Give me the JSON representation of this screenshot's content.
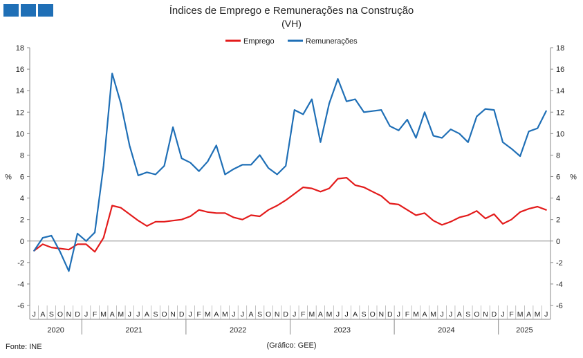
{
  "header": {
    "title": "Índices de Emprego e Remunerações na Construção",
    "subtitle": "(VH)"
  },
  "footer": {
    "source": "Fonte: INE",
    "credit": "(Gráfico: GEE)"
  },
  "colors": {
    "emprego": "#e31b1b",
    "remuneracoes": "#1f6fb6",
    "logo": "#1f6fb6"
  },
  "chart_data": {
    "type": "line",
    "title": "Índices de Emprego e Remunerações na Construção",
    "subtitle": "(VH)",
    "ylabel": "%",
    "ylabel_right": "%",
    "ylim": [
      -6,
      18
    ],
    "yticks": [
      -6,
      -4,
      -2,
      0,
      2,
      4,
      6,
      8,
      10,
      12,
      14,
      16,
      18
    ],
    "grid": false,
    "legend_position": "top-center",
    "month_labels": [
      "J",
      "A",
      "S",
      "O",
      "N",
      "D",
      "J",
      "F",
      "M",
      "A",
      "M",
      "J",
      "J",
      "A",
      "S",
      "O",
      "N",
      "D",
      "J",
      "F",
      "M",
      "A",
      "M",
      "J",
      "J",
      "A",
      "S",
      "O",
      "N",
      "D",
      "J",
      "F",
      "M",
      "A",
      "M",
      "J",
      "J",
      "A",
      "S",
      "O",
      "N",
      "D",
      "J",
      "F",
      "M",
      "A",
      "M",
      "J",
      "J",
      "A",
      "S",
      "O",
      "N",
      "D",
      "J",
      "F",
      "M",
      "A",
      "M",
      "J"
    ],
    "years": [
      {
        "label": "2020",
        "start": 0,
        "count": 6
      },
      {
        "label": "2021",
        "start": 6,
        "count": 12
      },
      {
        "label": "2022",
        "start": 18,
        "count": 12
      },
      {
        "label": "2023",
        "start": 30,
        "count": 12
      },
      {
        "label": "2024",
        "start": 42,
        "count": 12
      },
      {
        "label": "2025",
        "start": 54,
        "count": 6
      }
    ],
    "series": [
      {
        "name": "Emprego",
        "color": "#e31b1b",
        "values": [
          -0.9,
          -0.3,
          -0.6,
          -0.7,
          -0.8,
          -0.3,
          -0.3,
          -1.0,
          0.3,
          3.3,
          3.1,
          2.5,
          1.9,
          1.4,
          1.8,
          1.8,
          1.9,
          2.0,
          2.3,
          2.9,
          2.7,
          2.6,
          2.6,
          2.2,
          2.0,
          2.4,
          2.3,
          2.9,
          3.3,
          3.8,
          4.4,
          5.0,
          4.9,
          4.6,
          4.9,
          5.8,
          5.9,
          5.2,
          5.0,
          4.6,
          4.2,
          3.5,
          3.4,
          2.9,
          2.4,
          2.6,
          1.9,
          1.5,
          1.8,
          2.2,
          2.4,
          2.8,
          2.1,
          2.5,
          1.6,
          2.0,
          2.7,
          3.0,
          3.2,
          2.9
        ]
      },
      {
        "name": "Remunerações",
        "color": "#1f6fb6",
        "values": [
          -0.9,
          0.3,
          0.5,
          -1.0,
          -2.8,
          0.7,
          0.0,
          0.8,
          7.0,
          15.6,
          12.8,
          8.9,
          6.1,
          6.4,
          6.2,
          7.0,
          10.6,
          7.7,
          7.3,
          6.5,
          7.4,
          8.9,
          6.2,
          6.7,
          7.1,
          7.1,
          8.0,
          6.8,
          6.2,
          7.0,
          12.2,
          11.8,
          13.2,
          9.2,
          12.8,
          15.1,
          13.0,
          13.2,
          12.0,
          12.1,
          12.2,
          10.7,
          10.3,
          11.3,
          9.6,
          12.0,
          9.8,
          9.6,
          10.4,
          10.0,
          9.2,
          11.6,
          12.3,
          12.2,
          9.2,
          8.6,
          7.9,
          10.2,
          10.5,
          12.1
        ]
      }
    ]
  }
}
